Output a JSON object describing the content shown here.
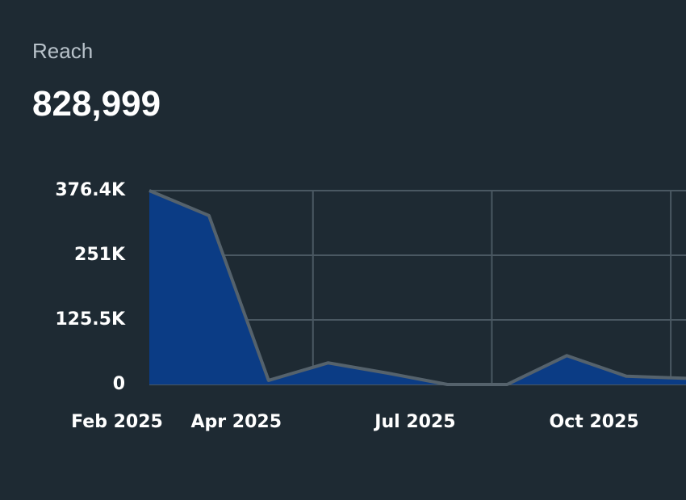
{
  "header": {
    "label": "Reach",
    "total": "828,999"
  },
  "chart_data": {
    "type": "area",
    "categories": [
      "Feb 2025",
      null,
      "Apr 2025",
      null,
      null,
      "Jul 2025",
      null,
      null,
      "Oct 2025",
      null
    ],
    "series": [
      {
        "name": "Reach",
        "color": "#0b3c85",
        "values": [
          376400,
          328000,
          8000,
          42000,
          22000,
          0,
          0,
          56000,
          16000,
          12000
        ]
      }
    ],
    "line_color": "#55626c",
    "ylim": [
      0,
      376400
    ],
    "yticks": [
      0,
      {
        "value": 125500,
        "label": "125.5K"
      },
      {
        "value": 251000,
        "label": "251K"
      },
      {
        "value": 376400,
        "label": "376.4K"
      }
    ],
    "grid": true
  }
}
